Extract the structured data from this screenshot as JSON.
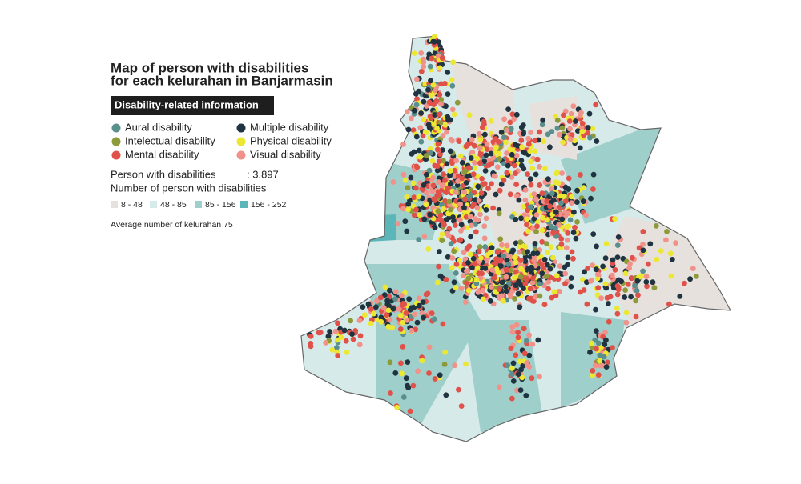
{
  "title": [
    "Map of person with disabilities",
    "for each kelurahan in Banjarmasin"
  ],
  "legend": {
    "header": "Disability-related information",
    "items": [
      {
        "label": "Aural disability",
        "color": "#5b8f8e"
      },
      {
        "label": "Intelectual disability",
        "color": "#8c9a3a"
      },
      {
        "label": "Mental disability",
        "color": "#e0514a"
      },
      {
        "label": "Multiple disability",
        "color": "#1f3340"
      },
      {
        "label": "Physical disability",
        "color": "#ece733"
      },
      {
        "label": "Visual disability",
        "color": "#f0928a"
      }
    ]
  },
  "summary": {
    "label": "Person with disabilities",
    "value": ": 3.897"
  },
  "choropleth": {
    "title": "Number of person with disabilities",
    "classes": [
      {
        "label": "8 - 48",
        "color": "#e6e1dd"
      },
      {
        "label": "48 - 85",
        "color": "#d6eaea"
      },
      {
        "label": "85 - 156",
        "color": "#9ecfcb"
      },
      {
        "label": "156 - 252",
        "color": "#5bb5b9"
      }
    ]
  },
  "note": "Average number of kelurahan 75"
}
